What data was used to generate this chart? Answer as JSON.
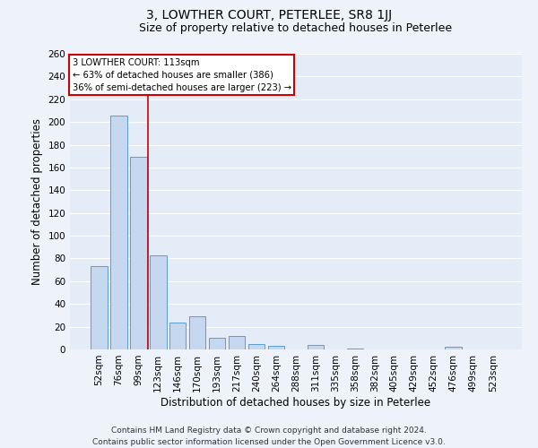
{
  "title": "3, LOWTHER COURT, PETERLEE, SR8 1JJ",
  "subtitle": "Size of property relative to detached houses in Peterlee",
  "xlabel": "Distribution of detached houses by size in Peterlee",
  "ylabel": "Number of detached properties",
  "bar_labels": [
    "52sqm",
    "76sqm",
    "99sqm",
    "123sqm",
    "146sqm",
    "170sqm",
    "193sqm",
    "217sqm",
    "240sqm",
    "264sqm",
    "288sqm",
    "311sqm",
    "335sqm",
    "358sqm",
    "382sqm",
    "405sqm",
    "429sqm",
    "452sqm",
    "476sqm",
    "499sqm",
    "523sqm"
  ],
  "bar_values": [
    73,
    206,
    169,
    83,
    24,
    29,
    10,
    12,
    5,
    3,
    0,
    4,
    0,
    1,
    0,
    0,
    0,
    0,
    2,
    0,
    0
  ],
  "bar_color": "#c5d8f0",
  "bar_edge_color": "#5b9bd5",
  "reference_line_color": "#cc0000",
  "annotation_text": "3 LOWTHER COURT: 113sqm\n← 63% of detached houses are smaller (386)\n36% of semi-detached houses are larger (223) →",
  "annotation_box_color": "#ffffff",
  "annotation_box_edge_color": "#cc0000",
  "ylim": [
    0,
    260
  ],
  "yticks": [
    0,
    20,
    40,
    60,
    80,
    100,
    120,
    140,
    160,
    180,
    200,
    220,
    240,
    260
  ],
  "footer_line1": "Contains HM Land Registry data © Crown copyright and database right 2024.",
  "footer_line2": "Contains public sector information licensed under the Open Government Licence v3.0.",
  "background_color": "#edf2fb",
  "plot_background_color": "#e4ecf7",
  "grid_color": "#ffffff",
  "title_fontsize": 10,
  "subtitle_fontsize": 9,
  "axis_label_fontsize": 8.5,
  "tick_fontsize": 7.5,
  "footer_fontsize": 6.5
}
